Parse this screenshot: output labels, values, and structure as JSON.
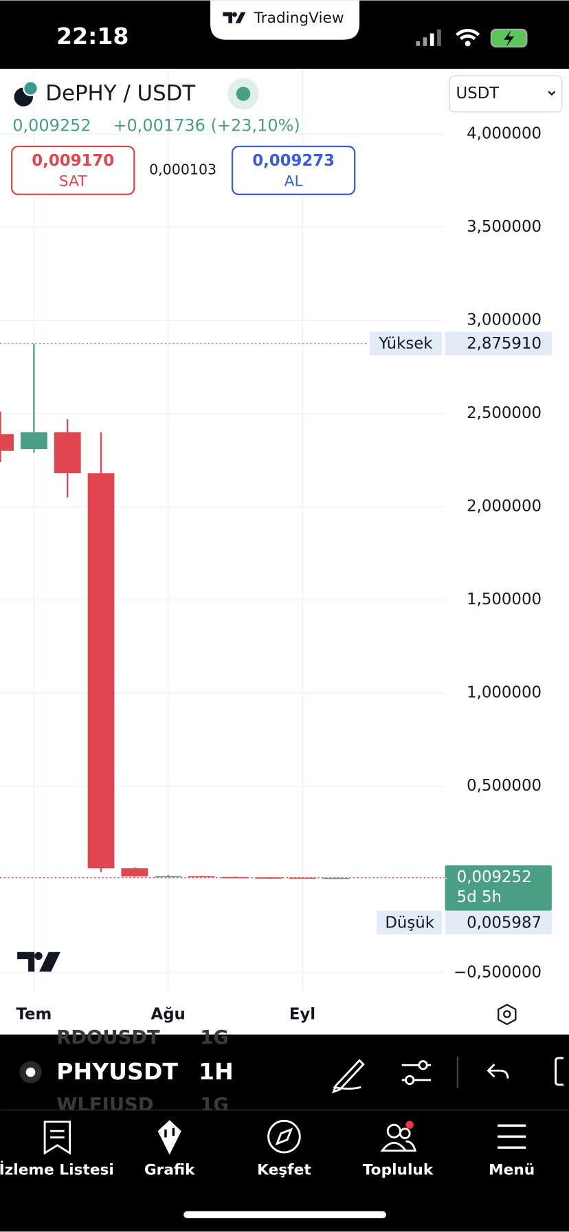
{
  "status_bar": {
    "time": "22:18",
    "app": "TradingView"
  },
  "header": {
    "symbol": "DePHY / USDT",
    "price": "0,009252",
    "change": "+0,001736 (+23,10%)",
    "currency": "USDT",
    "sell": {
      "price": "0,009170",
      "label": "SAT"
    },
    "spread": "0,000103",
    "buy": {
      "price": "0,009273",
      "label": "AL"
    }
  },
  "chart_data": {
    "type": "candlestick",
    "categories": [
      null,
      "Tem",
      null,
      null,
      null,
      "Ağu",
      null,
      null,
      null,
      "Eyl",
      null
    ],
    "open": [
      2.39,
      2.31,
      2.4,
      2.18,
      0.06,
      0.015,
      0.018,
      0.013,
      0.011,
      0.01,
      0.006
    ],
    "high": [
      2.51,
      2.87591,
      2.47,
      2.4,
      0.065,
      0.025,
      0.02,
      0.015,
      0.012,
      0.011,
      0.01
    ],
    "low": [
      2.24,
      2.29,
      2.05,
      0.04,
      0.015,
      0.012,
      0.011,
      0.009,
      0.008,
      0.007,
      0.005987
    ],
    "close": [
      2.3,
      2.4,
      2.18,
      0.06,
      0.017,
      0.018,
      0.012,
      0.01,
      0.009,
      0.008,
      0.009252
    ],
    "up_color": "#4a9e85",
    "down_color": "#e0464f",
    "ylim": [
      -0.6,
      4.35
    ],
    "yticks": [
      {
        "value": -0.5,
        "label": "−0,500000"
      },
      {
        "value": 0.5,
        "label": "0,500000"
      },
      {
        "value": 1,
        "label": "1,000000"
      },
      {
        "value": 1.5,
        "label": "1,500000"
      },
      {
        "value": 2,
        "label": "2,000000"
      },
      {
        "value": 2.5,
        "label": "2,500000"
      },
      {
        "value": 3,
        "label": "3,000000"
      },
      {
        "value": 3.5,
        "label": "3,500000"
      },
      {
        "value": 4,
        "label": "4,000000"
      }
    ],
    "grid": true,
    "high_marker": {
      "label": "Yüksek",
      "value": 2.87591,
      "value_label": "2,875910"
    },
    "last_marker": {
      "value": 0.009252,
      "value_label": "0,009252",
      "countdown": "5d 5h"
    },
    "low_marker": {
      "label": "Düşük",
      "value": 0.005987,
      "value_label": "0,005987"
    }
  },
  "toolbar": {
    "symbol": "PHYUSDT",
    "interval": "1H",
    "behind": [
      {
        "symbol": "RDOUSDT",
        "interval": "1G"
      },
      {
        "symbol": "WLFIUSD",
        "interval": "1G"
      }
    ]
  },
  "nav": [
    "İzleme Listesi",
    "Grafik",
    "Keşfet",
    "Topluluk",
    "Menü"
  ]
}
